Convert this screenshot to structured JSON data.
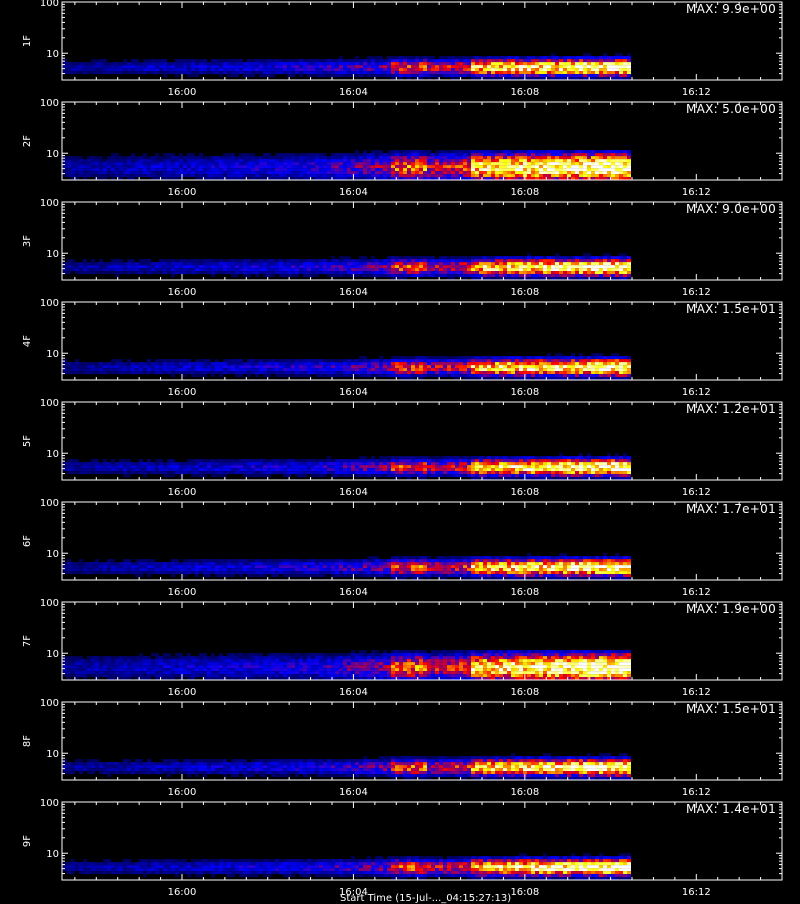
{
  "chart_data": [
    {
      "type": "heatmap",
      "ylabel": "1F",
      "max_label": "MAX: 9.9e+00",
      "max_value": 9.9,
      "intensity": 1.0
    },
    {
      "type": "heatmap",
      "ylabel": "2F",
      "max_label": "MAX: 5.0e+00",
      "max_value": 5.0,
      "intensity": 1.0
    },
    {
      "type": "heatmap",
      "ylabel": "3F",
      "max_label": "MAX: 9.0e+00",
      "max_value": 9.0,
      "intensity": 1.0
    },
    {
      "type": "heatmap",
      "ylabel": "4F",
      "max_label": "MAX: 1.5e+01",
      "max_value": 15,
      "intensity": 1.0
    },
    {
      "type": "heatmap",
      "ylabel": "5F",
      "max_label": "MAX: 1.2e+01",
      "max_value": 12,
      "intensity": 1.0
    },
    {
      "type": "heatmap",
      "ylabel": "6F",
      "max_label": "MAX: 1.7e+01",
      "max_value": 17,
      "intensity": 1.0
    },
    {
      "type": "heatmap",
      "ylabel": "7F",
      "max_label": "MAX: 1.9e+00",
      "max_value": 1.9,
      "intensity": 1.0
    },
    {
      "type": "heatmap",
      "ylabel": "8F",
      "max_label": "MAX: 1.5e+01",
      "max_value": 15,
      "intensity": 1.0
    },
    {
      "type": "heatmap",
      "ylabel": "9F",
      "max_label": "MAX: 1.4e+01",
      "max_value": 14,
      "intensity": 1.0
    }
  ],
  "shared_axes": {
    "x_tick_labels": [
      "16:00",
      "16:04",
      "16:08",
      "16:12"
    ],
    "x_tick_minutes": [
      0,
      4,
      8,
      12
    ],
    "xlim_minutes": [
      -2.8,
      14.0
    ],
    "y_tick_labels": [
      "10",
      "100"
    ],
    "y_tick_values": [
      10,
      100
    ],
    "ylim": [
      3,
      100
    ],
    "y_scale": "log",
    "data_end_minute": 10.4,
    "colormap": [
      "#000000",
      "#0000ff",
      "#ff0000",
      "#ffff00",
      "#ffffff"
    ]
  },
  "x_axis_title_partial": "Start Time (15-Jul-..._04:15:27:13)"
}
